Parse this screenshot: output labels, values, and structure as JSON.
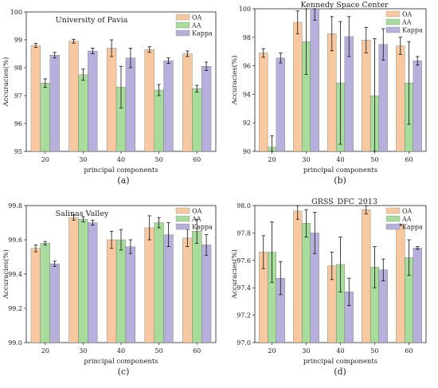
{
  "chart_data": [
    {
      "type": "bar",
      "panel": "(a)",
      "title": "University of Pavia",
      "xlabel": "principal components",
      "ylabel": "Accuracies(%)",
      "ylim": [
        95,
        100
      ],
      "yticks": [
        95,
        96,
        97,
        98,
        99,
        100
      ],
      "yticklabels": [
        "95",
        "96",
        "97",
        "98",
        "99",
        "100"
      ],
      "categories": [
        "20",
        "30",
        "40",
        "50",
        "60"
      ],
      "legend": "top-right",
      "series": [
        {
          "name": "OA",
          "color": "#f8c9a0",
          "values": [
            98.8,
            98.95,
            98.7,
            98.65,
            98.5
          ],
          "errors": [
            0.07,
            0.07,
            0.3,
            0.1,
            0.1
          ]
        },
        {
          "name": "AA",
          "color": "#a8dc9c",
          "values": [
            97.45,
            97.75,
            97.3,
            97.2,
            97.25
          ],
          "errors": [
            0.15,
            0.2,
            0.75,
            0.2,
            0.12
          ]
        },
        {
          "name": "Kappa",
          "color": "#b8b0dc",
          "values": [
            98.45,
            98.6,
            98.35,
            98.25,
            98.05
          ],
          "errors": [
            0.1,
            0.1,
            0.35,
            0.1,
            0.15
          ]
        }
      ]
    },
    {
      "type": "bar",
      "panel": "(b)",
      "title": "Kennedy Space Center",
      "xlabel": "principal components",
      "ylabel": "Accuracies(%)",
      "ylim": [
        90,
        100
      ],
      "yticks": [
        90,
        92,
        94,
        96,
        98,
        100
      ],
      "yticklabels": [
        "90",
        "92",
        "94",
        "96",
        "98",
        "100"
      ],
      "categories": [
        "20",
        "30",
        "40",
        "50",
        "60"
      ],
      "legend": "top-right",
      "series": [
        {
          "name": "OA",
          "color": "#f8c9a0",
          "values": [
            96.9,
            99.05,
            98.25,
            97.8,
            97.4
          ],
          "errors": [
            0.3,
            0.8,
            1.2,
            0.9,
            0.6
          ]
        },
        {
          "name": "AA",
          "color": "#a8dc9c",
          "values": [
            90.3,
            97.7,
            94.8,
            93.9,
            94.8
          ],
          "errors": [
            0.8,
            2.3,
            4.3,
            4.0,
            2.9
          ]
        },
        {
          "name": "Kappa",
          "color": "#b8b0dc",
          "values": [
            96.55,
            100.0,
            98.05,
            97.5,
            96.35
          ],
          "errors": [
            0.35,
            0.8,
            1.4,
            1.1,
            0.3
          ]
        }
      ]
    },
    {
      "type": "bar",
      "panel": "(c)",
      "title": "Salinas Valley",
      "xlabel": "principal components",
      "ylabel": "Accuracies(%)",
      "ylim": [
        99.0,
        99.8
      ],
      "yticks": [
        99.0,
        99.2,
        99.4,
        99.6,
        99.8
      ],
      "yticklabels": [
        "99.0",
        "99.2",
        "99.4",
        "99.6",
        "99.8"
      ],
      "categories": [
        "20",
        "30",
        "40",
        "50",
        "60"
      ],
      "legend": "top-right",
      "series": [
        {
          "name": "OA",
          "color": "#f8c9a0",
          "values": [
            99.55,
            99.73,
            99.6,
            99.67,
            99.61
          ],
          "errors": [
            0.02,
            0.015,
            0.05,
            0.07,
            0.05
          ]
        },
        {
          "name": "AA",
          "color": "#a8dc9c",
          "values": [
            99.58,
            99.72,
            99.6,
            99.7,
            99.65
          ],
          "errors": [
            0.01,
            0.015,
            0.06,
            0.03,
            0.07
          ]
        },
        {
          "name": "Kappa",
          "color": "#b8b0dc",
          "values": [
            99.46,
            99.7,
            99.56,
            99.63,
            99.57
          ],
          "errors": [
            0.015,
            0.015,
            0.04,
            0.07,
            0.06
          ]
        }
      ]
    },
    {
      "type": "bar",
      "panel": "(d)",
      "title": "GRSS_DFC_2013",
      "xlabel": "principal components",
      "ylabel": "Accuracies(%)",
      "ylim": [
        97.0,
        98.0
      ],
      "yticks": [
        97.0,
        97.2,
        97.4,
        97.6,
        97.8,
        98.0
      ],
      "yticklabels": [
        "97.0",
        "97.2",
        "97.4",
        "97.6",
        "97.8",
        "98.0"
      ],
      "categories": [
        "20",
        "30",
        "40",
        "50",
        "60"
      ],
      "legend": "top-right",
      "series": [
        {
          "name": "OA",
          "color": "#f8c9a0",
          "values": [
            97.66,
            97.96,
            97.56,
            97.97,
            97.86
          ],
          "errors": [
            0.12,
            0.06,
            0.1,
            0.03,
            0.005
          ]
        },
        {
          "name": "AA",
          "color": "#a8dc9c",
          "values": [
            97.66,
            97.87,
            97.57,
            97.55,
            97.62
          ],
          "errors": [
            0.22,
            0.1,
            0.2,
            0.15,
            0.13
          ]
        },
        {
          "name": "Kappa",
          "color": "#b8b0dc",
          "values": [
            97.47,
            97.8,
            97.37,
            97.53,
            97.69
          ],
          "errors": [
            0.12,
            0.15,
            0.1,
            0.08,
            0.01
          ]
        }
      ]
    }
  ]
}
